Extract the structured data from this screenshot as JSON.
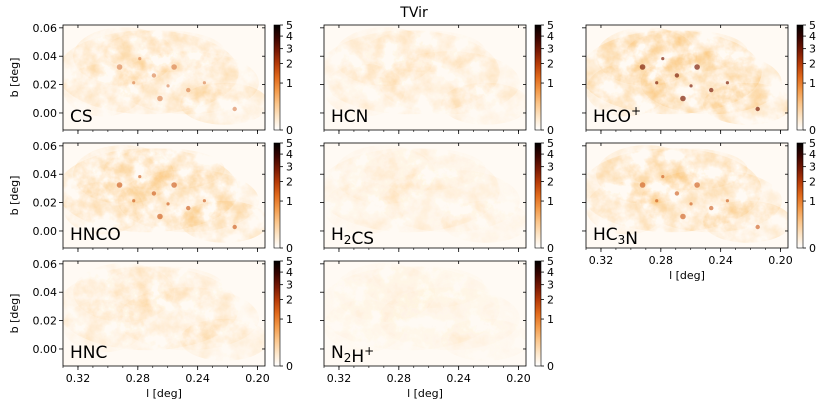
{
  "chart_data": {
    "type": "heatmap",
    "title": "TVir",
    "xlabel": "l [deg]",
    "ylabel": "b [deg]",
    "xlim": [
      0.33,
      0.195
    ],
    "ylim": [
      -0.012,
      0.062
    ],
    "xticks": [
      0.32,
      0.28,
      0.24,
      0.2
    ],
    "xtick_labels": [
      "0.32",
      "0.28",
      "0.24",
      "0.20"
    ],
    "yticks": [
      0.06,
      0.04,
      0.02,
      0.0
    ],
    "ytick_labels": [
      "0.06",
      "0.04",
      "0.02",
      "0.00"
    ],
    "colorbar": {
      "range": [
        0,
        5
      ],
      "scale": "sqrt",
      "ticks": [
        0,
        1,
        2,
        3,
        4,
        5
      ],
      "tick_labels": [
        "0",
        "1",
        "2",
        "3",
        "4",
        "5"
      ],
      "colormap": [
        "#ffffff",
        "#fde6c8",
        "#fbc58a",
        "#f39a4a",
        "#e16a1c",
        "#b83c08",
        "#7a1a04",
        "#3a0400",
        "#000000"
      ]
    },
    "panels": [
      {
        "name": "CS",
        "label_parts": [
          {
            "t": "CS"
          }
        ],
        "intensity": 0.55,
        "row": 0,
        "col": 0
      },
      {
        "name": "HCN",
        "label_parts": [
          {
            "t": "HCN"
          }
        ],
        "intensity": 0.38,
        "row": 0,
        "col": 1
      },
      {
        "name": "HCO+",
        "label_parts": [
          {
            "t": "HCO"
          },
          {
            "t": "+",
            "sup": true
          }
        ],
        "intensity": 0.85,
        "row": 0,
        "col": 2
      },
      {
        "name": "HNCO",
        "label_parts": [
          {
            "t": "HNCO"
          }
        ],
        "intensity": 0.75,
        "row": 1,
        "col": 0
      },
      {
        "name": "H2CS",
        "label_parts": [
          {
            "t": "H"
          },
          {
            "t": "2",
            "sub": true
          },
          {
            "t": "CS"
          }
        ],
        "intensity": 0.28,
        "row": 1,
        "col": 1
      },
      {
        "name": "HC3N",
        "label_parts": [
          {
            "t": "HC"
          },
          {
            "t": "3",
            "sub": true
          },
          {
            "t": "N"
          }
        ],
        "intensity": 0.72,
        "row": 1,
        "col": 2
      },
      {
        "name": "HNC",
        "label_parts": [
          {
            "t": "HNC"
          }
        ],
        "intensity": 0.42,
        "row": 2,
        "col": 0
      },
      {
        "name": "N2H+",
        "label_parts": [
          {
            "t": "N"
          },
          {
            "t": "2",
            "sub": true
          },
          {
            "t": "H"
          },
          {
            "t": "+",
            "sup": true
          }
        ],
        "intensity": 0.18,
        "row": 2,
        "col": 1
      }
    ]
  }
}
